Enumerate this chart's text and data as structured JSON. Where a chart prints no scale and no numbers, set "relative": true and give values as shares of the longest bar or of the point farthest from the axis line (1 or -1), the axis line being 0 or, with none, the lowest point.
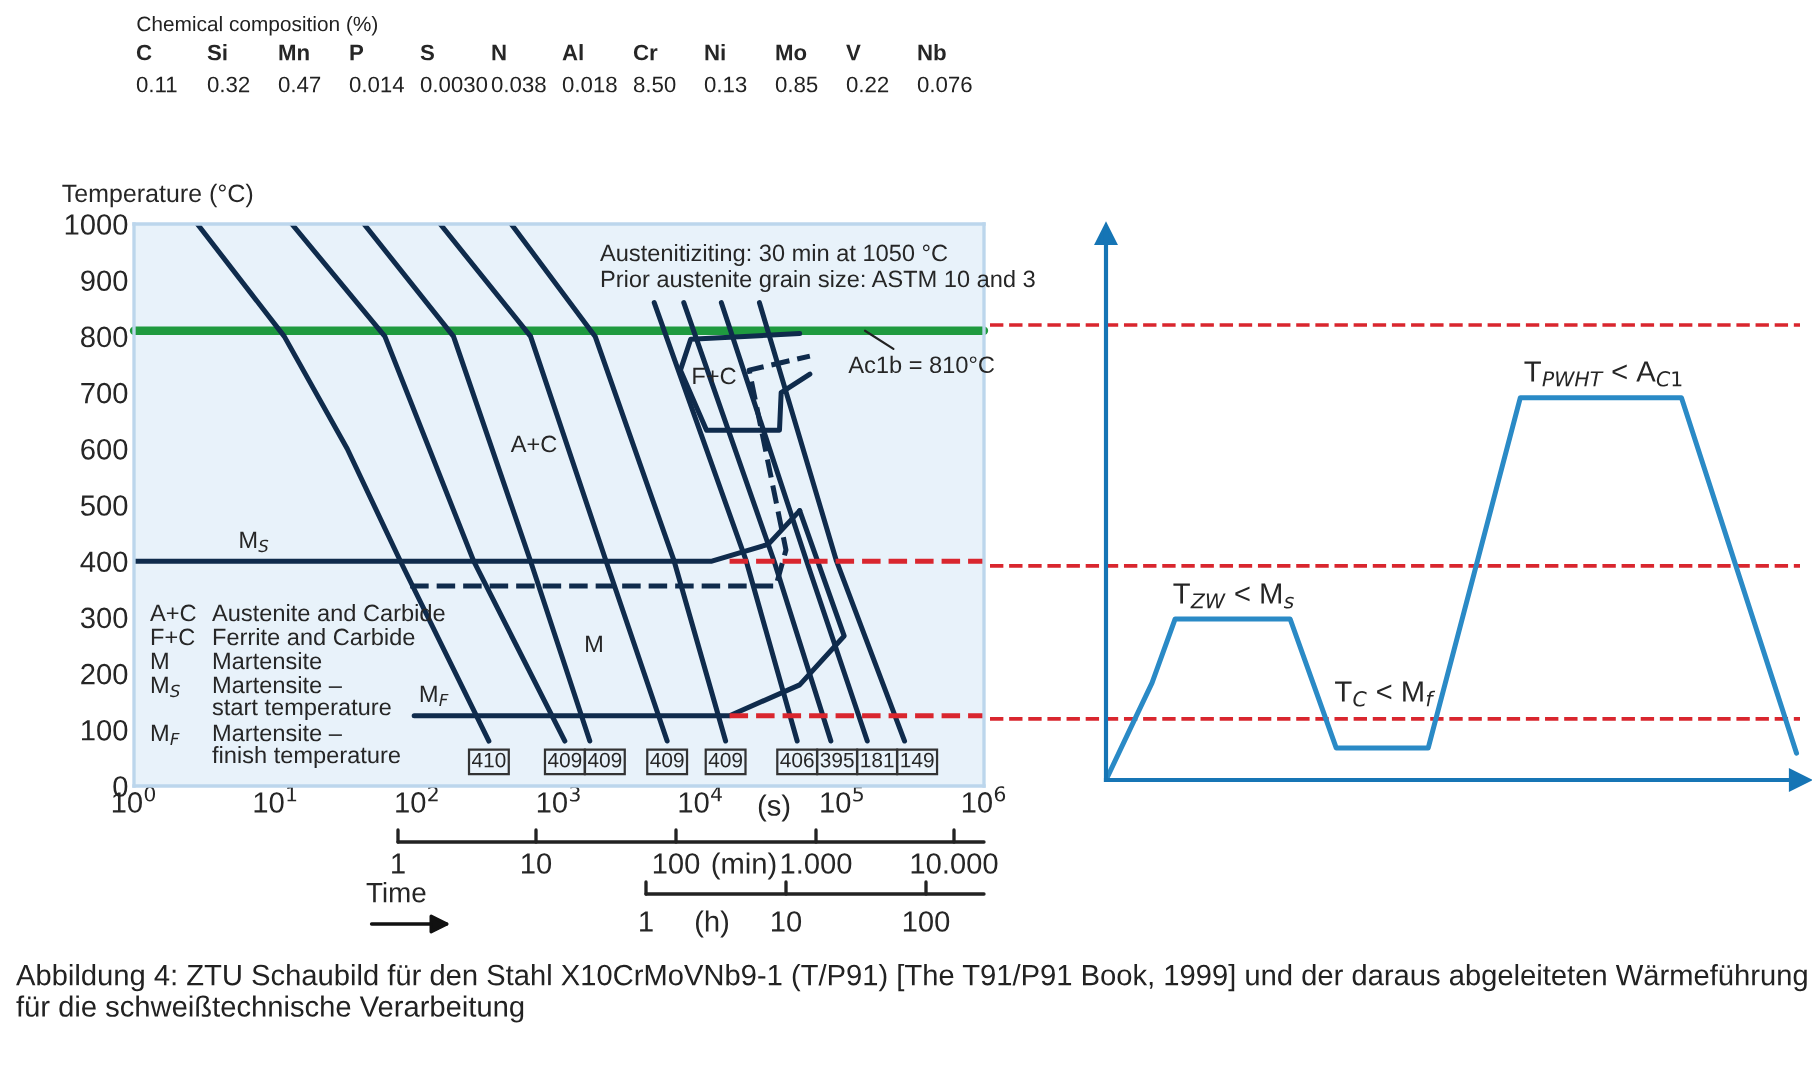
{
  "chart_data": [
    {
      "type": "other",
      "title": "Chemical composition (%)",
      "categories": [
        "C",
        "Si",
        "Mn",
        "P",
        "S",
        "N",
        "Al",
        "Cr",
        "Ni",
        "Mo",
        "V",
        "Nb"
      ],
      "values": [
        0.11,
        0.32,
        0.47,
        0.014,
        0.003,
        0.038,
        0.018,
        8.5,
        0.13,
        0.85,
        0.22,
        0.076
      ],
      "value_labels": [
        "0.11",
        "0.32",
        "0.47",
        "0.014",
        "0.0030",
        "0.038",
        "0.018",
        "8.50",
        "0.13",
        "0.85",
        "0.22",
        "0.076"
      ]
    },
    {
      "type": "line",
      "log": "x",
      "ylabel": "Temperature (°C)",
      "xlabel": "(s)",
      "xlim": [
        1,
        1000000
      ],
      "ylim": [
        0,
        1000
      ],
      "xticks": [
        {
          "value": 1,
          "label": "10$^{0}$"
        },
        {
          "value": 10,
          "label": "10$^{1}$"
        },
        {
          "value": 100,
          "label": "10$^{2}$"
        },
        {
          "value": 1000,
          "label": "10$^{3}$"
        },
        {
          "value": 10000,
          "label": "10$^{4}$"
        },
        {
          "value": 100000,
          "label": "10$^{5}$"
        },
        {
          "value": 1000000,
          "label": "10$^{6}$"
        }
      ],
      "yticks": [
        0,
        100,
        200,
        300,
        400,
        500,
        600,
        700,
        800,
        900,
        1000
      ],
      "grid": false,
      "marker": "none",
      "series": [
        {
          "color": "#0f2b4c",
          "x": [
            2.8,
            11.5,
            32,
            76,
            320
          ],
          "values": [
            1000,
            800,
            600,
            400,
            80
          ]
        },
        {
          "color": "#0f2b4c",
          "x": [
            13,
            59,
            250,
            1100
          ],
          "values": [
            1000,
            800,
            400,
            80
          ]
        },
        {
          "color": "#0f2b4c",
          "x": [
            42,
            180,
            630,
            1650
          ],
          "values": [
            1000,
            800,
            400,
            80
          ]
        },
        {
          "color": "#0f2b4c",
          "x": [
            145,
            630,
            2150,
            5800
          ],
          "values": [
            1000,
            800,
            400,
            80
          ]
        },
        {
          "color": "#0f2b4c",
          "x": [
            460,
            1800,
            6500,
            15000
          ],
          "values": [
            1000,
            800,
            400,
            80
          ]
        },
        {
          "color": "#0f2b4c",
          "x": [
            4700,
            21000,
            48000
          ],
          "values": [
            860,
            400,
            80
          ]
        },
        {
          "color": "#0f2b4c",
          "x": [
            7600,
            33000,
            83000
          ],
          "values": [
            860,
            400,
            80
          ]
        },
        {
          "color": "#0f2b4c",
          "x": [
            14000,
            56000,
            150000
          ],
          "values": [
            860,
            400,
            80
          ]
        },
        {
          "color": "#0f2b4c",
          "x": [
            26000,
            91000,
            275000
          ],
          "values": [
            860,
            400,
            80
          ]
        },
        {
          "color": "#0f2b4c",
          "x": [
            1,
            12000,
            30000,
            50000
          ],
          "values": [
            400,
            400,
            430,
            490
          ]
        },
        {
          "color": "#0f2b4c",
          "x": [
            95,
            16000,
            50000,
            103000,
            50000
          ],
          "values": [
            125,
            125,
            180,
            267,
            490
          ]
        },
        {
          "color": "#0f2b4c",
          "line_style": "dashed",
          "x": [
            89,
            34000,
            40000,
            22000,
            59000
          ],
          "values": [
            356,
            356,
            420,
            740,
            765
          ]
        },
        {
          "color": "#0f2b4c",
          "x": [
            50000,
            8500,
            7200,
            11000,
            36000,
            37000,
            59000
          ],
          "values": [
            805,
            795,
            740,
            633,
            633,
            700,
            733
          ]
        },
        {
          "color": "#d9262e",
          "line_style": "dashed",
          "x": [
            16000,
            1000000
          ],
          "values": [
            400,
            400
          ]
        },
        {
          "color": "#d9262e",
          "line_style": "dashed",
          "x": [
            16000,
            1000000
          ],
          "values": [
            125,
            125
          ]
        }
      ],
      "ref_lines": [
        {
          "axis": "y",
          "value": 810,
          "label": "Ac1b = 810°C",
          "color": "#1f9a3f"
        }
      ],
      "annotations": [
        "Austenitiziting: 30 min at 1050 °C",
        "Prior austenite grain size: ASTM 10 and 3",
        "A+C\tAustenite and Carbide",
        "F+C\tFerrite and Carbide",
        "M\tMartensite",
        "M$_{S}$\tMartensite –\nstart temperature",
        "M$_{F}$\tMartensite –\nfinish temperature",
        "Time",
        "A+C",
        "F+C",
        "M",
        "M$_{S}$",
        "M$_{F}$",
        "1",
        "10",
        "100",
        "(h)",
        "1",
        "10",
        "100",
        "1.000",
        "10.000",
        "(min)",
        {
          "text": "410",
          "x": 320,
          "y": 80
        },
        {
          "text": "409",
          "x": 1100,
          "y": 80
        },
        {
          "text": "409",
          "x": 1650,
          "y": 80
        },
        {
          "text": "409",
          "x": 5800,
          "y": 80
        },
        {
          "text": "409",
          "x": 15000,
          "y": 80
        },
        {
          "text": "406",
          "x": 48000,
          "y": 80
        },
        {
          "text": "395",
          "x": 83000,
          "y": 80
        },
        {
          "text": "181",
          "x": 150000,
          "y": 80
        },
        {
          "text": "149",
          "x": 275000,
          "y": 80
        }
      ]
    },
    {
      "type": "line",
      "relative": true,
      "grid": false,
      "marker": "none",
      "categories": [
        null,
        null,
        null,
        null,
        null,
        null,
        null,
        null,
        null,
        null,
        null,
        null,
        null,
        null,
        null,
        null,
        null,
        null,
        null,
        null,
        null,
        null,
        null,
        null,
        null,
        null,
        null,
        null,
        null,
        null,
        null
      ],
      "series": [
        {
          "color": "#2a8ac6",
          "values": [
            0,
            0.127,
            0.254,
            0.421,
            0.421,
            0.421,
            0.421,
            0.421,
            0.421,
            0.2525,
            0.084,
            0.084,
            0.084,
            0.084,
            0.084,
            0.313,
            0.542,
            0.771,
            1,
            1,
            1,
            1,
            1,
            1,
            1,
            1,
            0.814,
            0.628,
            0.442,
            0.256,
            0.07
          ]
        }
      ],
      "ref_lines": [
        {
          "axis": "y",
          "value": 1.19,
          "color": "#d9262e",
          "line_style": "dashed"
        },
        {
          "axis": "y",
          "value": 0.56,
          "color": "#d9262e",
          "line_style": "dashed"
        },
        {
          "axis": "y",
          "value": 0.16,
          "color": "#d9262e",
          "line_style": "dashed"
        }
      ],
      "annotations": [
        "Abbildung 4: ZTU Schaubild für den Stahl X10CrMoVNb9-1 (T/P91) [The T91/P91 Book, 1999] und der daraus abgeleiteten Wärmeführung für die schweißtechnische Verarbeitung",
        "T$_{ZW}$ < M$_{s}$",
        "T$_{C}$ < M$_{f}$",
        "T$_{PWHT}$ < A$_{C1}$"
      ]
    }
  ]
}
